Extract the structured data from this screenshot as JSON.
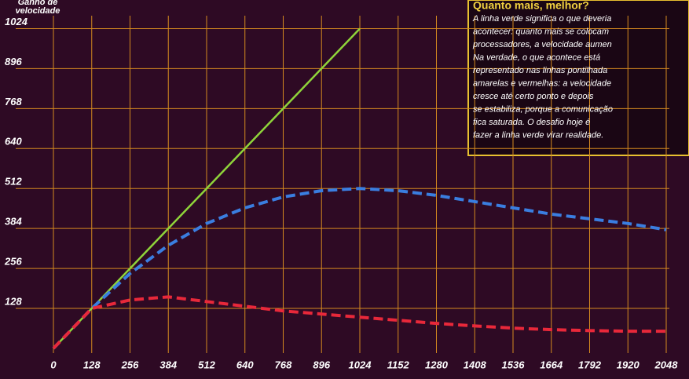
{
  "chart_data": {
    "type": "line",
    "y_label": [
      "Ganho de",
      "velocidade"
    ],
    "x": [
      0,
      128,
      256,
      384,
      512,
      640,
      768,
      896,
      1024,
      1152,
      1280,
      1408,
      1536,
      1664,
      1792,
      1920,
      2048
    ],
    "series": [
      {
        "color": "#8fd43a",
        "style": "solid",
        "values": [
          0,
          128,
          256,
          384,
          512,
          640,
          768,
          896,
          1024,
          null,
          null,
          null,
          null,
          null,
          null,
          null,
          null
        ]
      },
      {
        "color": "#3a7ee0",
        "style": "dashed",
        "values": [
          0,
          128,
          240,
          330,
          400,
          450,
          485,
          505,
          512,
          505,
          490,
          470,
          450,
          430,
          415,
          400,
          380
        ]
      },
      {
        "color": "#e8283a",
        "style": "dashed",
        "values": [
          0,
          128,
          155,
          165,
          150,
          135,
          120,
          110,
          100,
          90,
          80,
          72,
          65,
          60,
          57,
          55,
          55
        ]
      }
    ],
    "xlim": [
      0,
      2048
    ],
    "ylim": [
      0,
      1088
    ],
    "xticks": [
      0,
      128,
      256,
      384,
      512,
      640,
      768,
      896,
      1024,
      1152,
      1280,
      1408,
      1536,
      1664,
      1792,
      1920,
      2048
    ],
    "yticks": [
      128,
      256,
      384,
      512,
      640,
      768,
      896,
      1024
    ],
    "grid": true,
    "grid_color": "#d4891f",
    "note": {
      "title": "Quanto mais, melhor?",
      "lines": [
        "A linha verde significa o que deveria",
        "acontecer: quanto mais se colocam",
        "processadores, a velocidade aumen",
        "Na verdade, o que acontece está",
        "representado nas linhas pontilhada",
        "amarelas e vermelhas: a velocidade",
        "cresce até certo ponto e depois",
        "se estabiliza, porque a comunicação",
        "fica saturada. O desafio hoje é",
        "fazer a linha verde virar realidade."
      ]
    }
  }
}
